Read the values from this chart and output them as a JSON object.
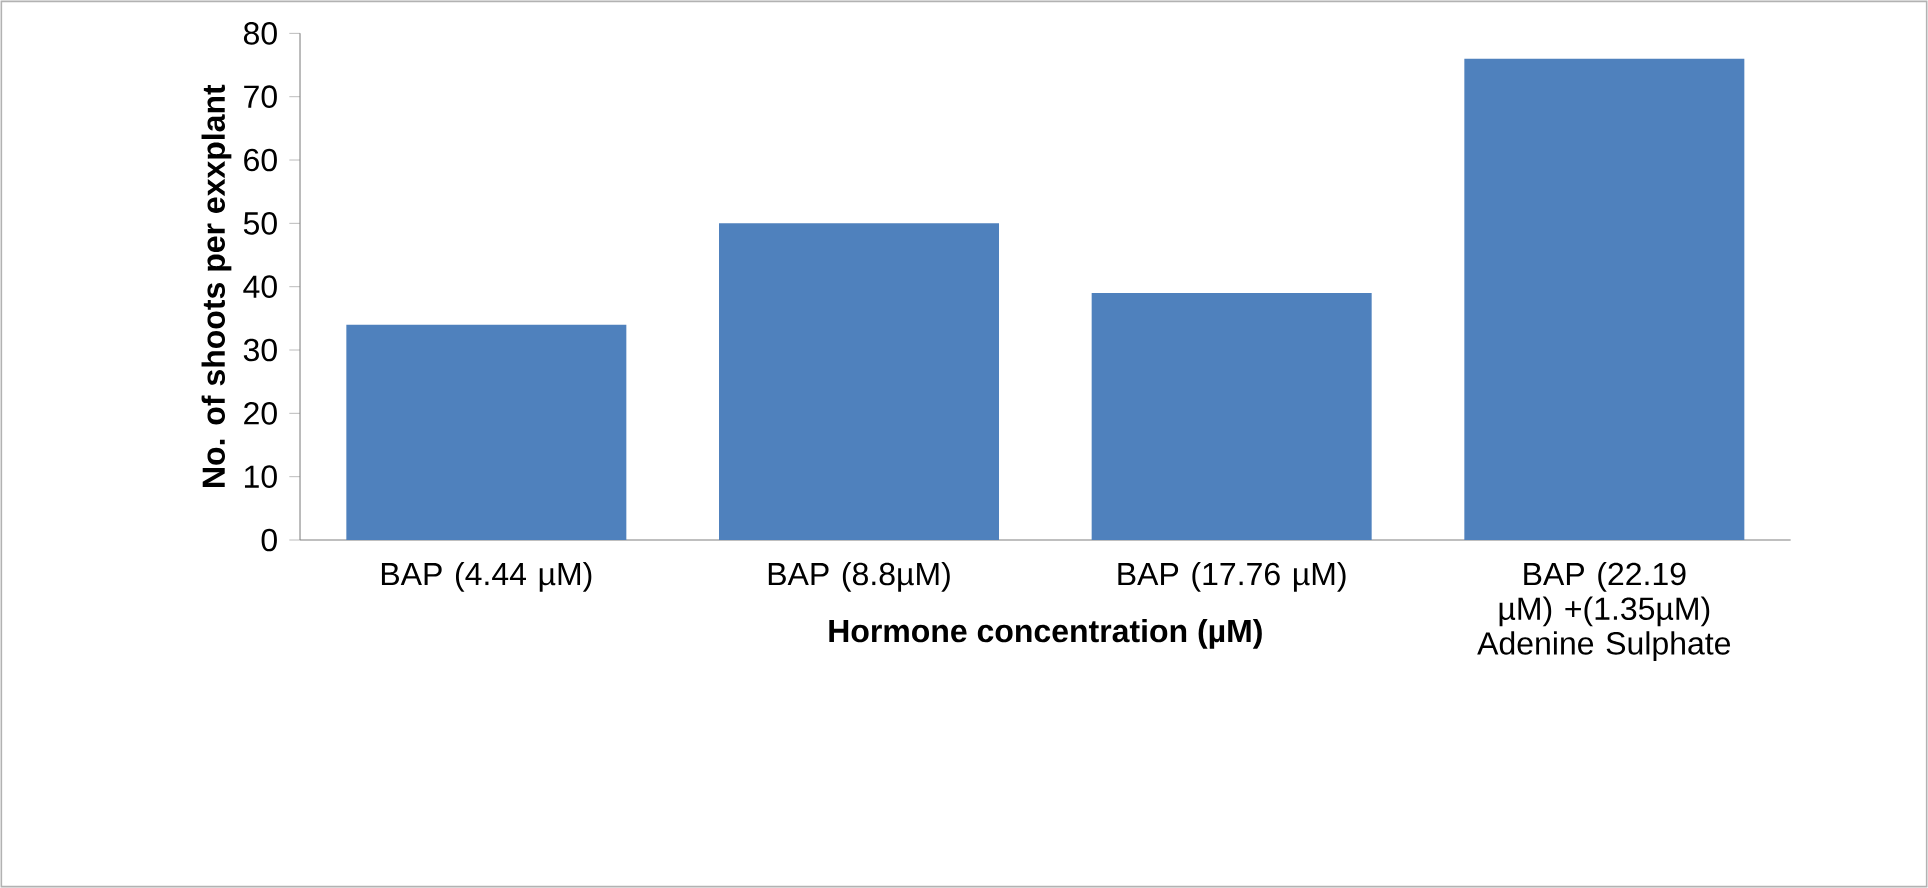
{
  "chart_data": {
    "type": "bar",
    "xlabel": "Hormone concentration (µM)",
    "ylabel": "No. of shoots per exxplant",
    "categories": [
      "BAP (4.44 µM)",
      "BAP (8.8µM)",
      "BAP (17.76 µM)",
      "BAP (22.19 µM) +(1.35µM) Adenine Sulphate"
    ],
    "values": [
      34,
      50,
      39,
      76
    ],
    "color": "#4f81bd",
    "ylim": [
      0,
      80
    ],
    "yticks": [
      0,
      10,
      20,
      30,
      40,
      50,
      60,
      70,
      80
    ]
  }
}
